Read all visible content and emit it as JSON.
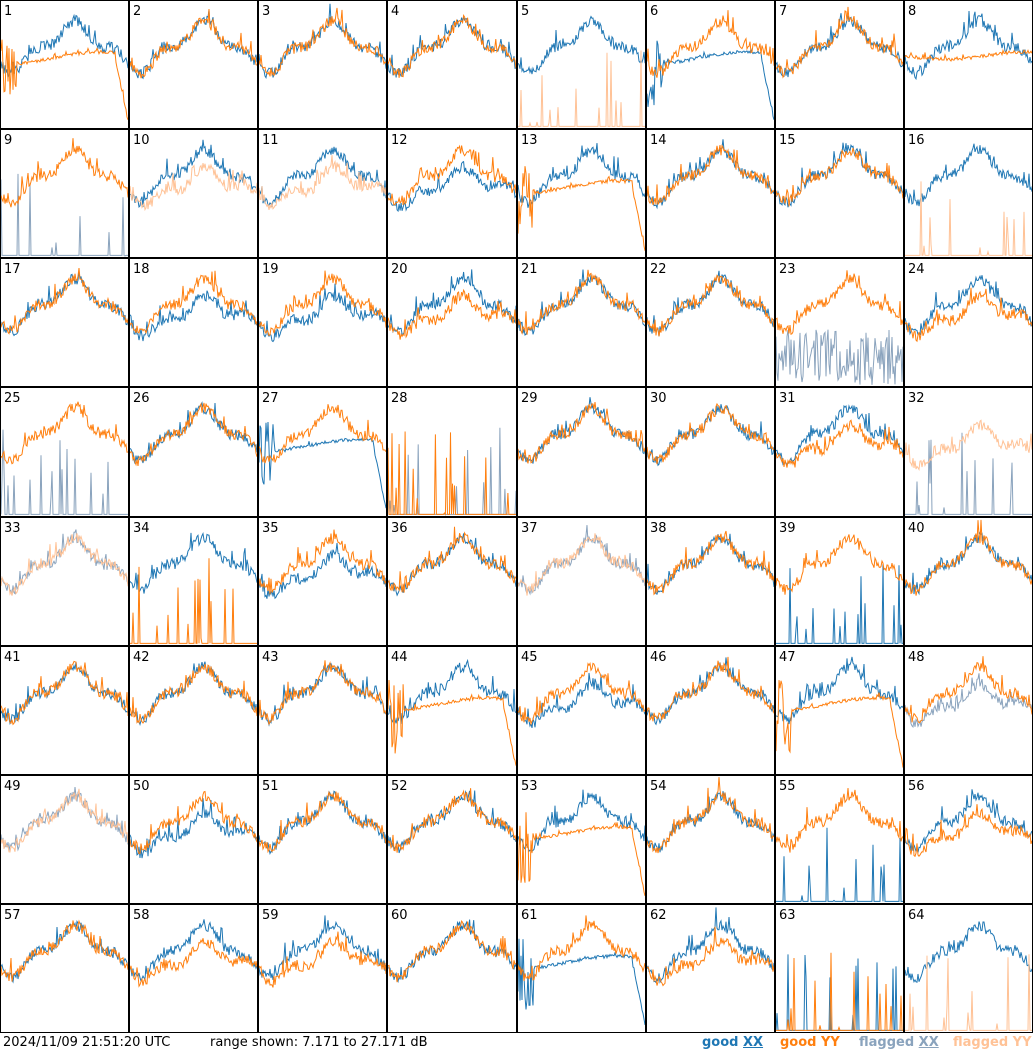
{
  "footer": {
    "timestamp": "2024/11/09 21:51:20 UTC",
    "range_label": "range shown: 7.171 to 27.171 dB"
  },
  "legend": {
    "good_prefix": "good ",
    "good_xx": "XX",
    "good_yy": "good YY",
    "flagged_prefix": "flagged ",
    "flagged_xx": "XX",
    "flagged_yy": "flagged YY"
  },
  "colors": {
    "good_xx": "#1f77b4",
    "good_yy": "#ff7f0e",
    "flagged_xx": "#8aa3bd",
    "flagged_yy": "#ffc296"
  },
  "chart_data": {
    "type": "line",
    "layout": "small multiples, 8x8 grid of antenna panels",
    "y_range_db": [
      7.171,
      27.171
    ],
    "panels": [
      {
        "id": "1",
        "xx": "good",
        "yy": "good",
        "xx_shape": "normal",
        "yy_shape": "drop"
      },
      {
        "id": "2",
        "xx": "good",
        "yy": "good",
        "xx_shape": "normal",
        "yy_shape": "normal"
      },
      {
        "id": "3",
        "xx": "good",
        "yy": "good",
        "xx_shape": "normal",
        "yy_shape": "normal"
      },
      {
        "id": "4",
        "xx": "good",
        "yy": "good",
        "xx_shape": "normal",
        "yy_shape": "normal"
      },
      {
        "id": "5",
        "xx": "good",
        "yy": "flagged",
        "xx_shape": "normal",
        "yy_shape": "spikes"
      },
      {
        "id": "6",
        "xx": "good",
        "yy": "good",
        "xx_shape": "drop",
        "yy_shape": "normal"
      },
      {
        "id": "7",
        "xx": "good",
        "yy": "good",
        "xx_shape": "normal",
        "yy_shape": "normal"
      },
      {
        "id": "8",
        "xx": "good",
        "yy": "good",
        "xx_shape": "normal",
        "yy_shape": "flat"
      },
      {
        "id": "9",
        "xx": "flagged",
        "yy": "good",
        "xx_shape": "spikes",
        "yy_shape": "normal"
      },
      {
        "id": "10",
        "xx": "good",
        "yy": "flagged",
        "xx_shape": "normal",
        "yy_shape": "deep"
      },
      {
        "id": "11",
        "xx": "good",
        "yy": "flagged",
        "xx_shape": "normal",
        "yy_shape": "deep"
      },
      {
        "id": "12",
        "xx": "good",
        "yy": "good",
        "xx_shape": "deep",
        "yy_shape": "normal"
      },
      {
        "id": "13",
        "xx": "good",
        "yy": "good",
        "xx_shape": "normal",
        "yy_shape": "drop"
      },
      {
        "id": "14",
        "xx": "good",
        "yy": "good",
        "xx_shape": "normal",
        "yy_shape": "normal"
      },
      {
        "id": "15",
        "xx": "good",
        "yy": "good",
        "xx_shape": "normal",
        "yy_shape": "normal"
      },
      {
        "id": "16",
        "xx": "good",
        "yy": "flagged",
        "xx_shape": "normal",
        "yy_shape": "spikes"
      },
      {
        "id": "17",
        "xx": "good",
        "yy": "good",
        "xx_shape": "normal",
        "yy_shape": "normal"
      },
      {
        "id": "18",
        "xx": "good",
        "yy": "good",
        "xx_shape": "deep",
        "yy_shape": "normal"
      },
      {
        "id": "19",
        "xx": "good",
        "yy": "good",
        "xx_shape": "deep",
        "yy_shape": "normal"
      },
      {
        "id": "20",
        "xx": "good",
        "yy": "good",
        "xx_shape": "normal",
        "yy_shape": "deep"
      },
      {
        "id": "21",
        "xx": "good",
        "yy": "good",
        "xx_shape": "normal",
        "yy_shape": "normal"
      },
      {
        "id": "22",
        "xx": "good",
        "yy": "good",
        "xx_shape": "normal",
        "yy_shape": "normal"
      },
      {
        "id": "23",
        "xx": "flagged",
        "yy": "good",
        "xx_shape": "noise",
        "yy_shape": "normal"
      },
      {
        "id": "24",
        "xx": "good",
        "yy": "good",
        "xx_shape": "normal",
        "yy_shape": "deep"
      },
      {
        "id": "25",
        "xx": "flagged",
        "yy": "good",
        "xx_shape": "spikes",
        "yy_shape": "normal"
      },
      {
        "id": "26",
        "xx": "good",
        "yy": "good",
        "xx_shape": "normal",
        "yy_shape": "normal"
      },
      {
        "id": "27",
        "xx": "good",
        "yy": "good",
        "xx_shape": "drop",
        "yy_shape": "normal"
      },
      {
        "id": "28",
        "xx": "flagged",
        "yy": "good",
        "xx_shape": "spikes",
        "yy_shape": "spikes"
      },
      {
        "id": "29",
        "xx": "good",
        "yy": "good",
        "xx_shape": "normal",
        "yy_shape": "normal"
      },
      {
        "id": "30",
        "xx": "good",
        "yy": "good",
        "xx_shape": "normal",
        "yy_shape": "normal"
      },
      {
        "id": "31",
        "xx": "good",
        "yy": "good",
        "xx_shape": "normal",
        "yy_shape": "deep"
      },
      {
        "id": "32",
        "xx": "flagged",
        "yy": "flagged",
        "xx_shape": "spikes",
        "yy_shape": "deep"
      },
      {
        "id": "33",
        "xx": "flagged",
        "yy": "flagged",
        "xx_shape": "normal",
        "yy_shape": "normal"
      },
      {
        "id": "34",
        "xx": "good",
        "yy": "good",
        "xx_shape": "normal",
        "yy_shape": "spikes"
      },
      {
        "id": "35",
        "xx": "good",
        "yy": "good",
        "xx_shape": "deep",
        "yy_shape": "normal"
      },
      {
        "id": "36",
        "xx": "good",
        "yy": "good",
        "xx_shape": "normal",
        "yy_shape": "normal"
      },
      {
        "id": "37",
        "xx": "flagged",
        "yy": "flagged",
        "xx_shape": "normal",
        "yy_shape": "normal"
      },
      {
        "id": "38",
        "xx": "good",
        "yy": "good",
        "xx_shape": "normal",
        "yy_shape": "normal"
      },
      {
        "id": "39",
        "xx": "good",
        "yy": "good",
        "xx_shape": "spikes",
        "yy_shape": "normal"
      },
      {
        "id": "40",
        "xx": "good",
        "yy": "good",
        "xx_shape": "normal",
        "yy_shape": "normal"
      },
      {
        "id": "41",
        "xx": "good",
        "yy": "good",
        "xx_shape": "normal",
        "yy_shape": "normal"
      },
      {
        "id": "42",
        "xx": "good",
        "yy": "good",
        "xx_shape": "normal",
        "yy_shape": "normal"
      },
      {
        "id": "43",
        "xx": "good",
        "yy": "good",
        "xx_shape": "normal",
        "yy_shape": "normal"
      },
      {
        "id": "44",
        "xx": "good",
        "yy": "good",
        "xx_shape": "normal",
        "yy_shape": "drop"
      },
      {
        "id": "45",
        "xx": "good",
        "yy": "good",
        "xx_shape": "deep",
        "yy_shape": "normal"
      },
      {
        "id": "46",
        "xx": "good",
        "yy": "good",
        "xx_shape": "normal",
        "yy_shape": "normal"
      },
      {
        "id": "47",
        "xx": "good",
        "yy": "good",
        "xx_shape": "normal",
        "yy_shape": "drop"
      },
      {
        "id": "48",
        "xx": "flagged",
        "yy": "good",
        "xx_shape": "deep",
        "yy_shape": "normal"
      },
      {
        "id": "49",
        "xx": "flagged",
        "yy": "flagged",
        "xx_shape": "normal",
        "yy_shape": "normal"
      },
      {
        "id": "50",
        "xx": "good",
        "yy": "good",
        "xx_shape": "deep",
        "yy_shape": "normal"
      },
      {
        "id": "51",
        "xx": "good",
        "yy": "good",
        "xx_shape": "normal",
        "yy_shape": "normal"
      },
      {
        "id": "52",
        "xx": "good",
        "yy": "good",
        "xx_shape": "normal",
        "yy_shape": "normal"
      },
      {
        "id": "53",
        "xx": "good",
        "yy": "good",
        "xx_shape": "normal",
        "yy_shape": "drop"
      },
      {
        "id": "54",
        "xx": "good",
        "yy": "good",
        "xx_shape": "normal",
        "yy_shape": "normal"
      },
      {
        "id": "55",
        "xx": "good",
        "yy": "good",
        "xx_shape": "spikes",
        "yy_shape": "normal"
      },
      {
        "id": "56",
        "xx": "good",
        "yy": "good",
        "xx_shape": "normal",
        "yy_shape": "deep"
      },
      {
        "id": "57",
        "xx": "good",
        "yy": "good",
        "xx_shape": "normal",
        "yy_shape": "normal"
      },
      {
        "id": "58",
        "xx": "good",
        "yy": "good",
        "xx_shape": "normal",
        "yy_shape": "deep"
      },
      {
        "id": "59",
        "xx": "good",
        "yy": "good",
        "xx_shape": "normal",
        "yy_shape": "deep"
      },
      {
        "id": "60",
        "xx": "good",
        "yy": "good",
        "xx_shape": "normal",
        "yy_shape": "normal"
      },
      {
        "id": "61",
        "xx": "good",
        "yy": "good",
        "xx_shape": "drop",
        "yy_shape": "normal"
      },
      {
        "id": "62",
        "xx": "good",
        "yy": "good",
        "xx_shape": "normal",
        "yy_shape": "deep"
      },
      {
        "id": "63",
        "xx": "good",
        "yy": "good",
        "xx_shape": "spikes",
        "yy_shape": "spikes"
      },
      {
        "id": "64",
        "xx": "good",
        "yy": "flagged",
        "xx_shape": "normal",
        "yy_shape": "spikes"
      }
    ]
  }
}
